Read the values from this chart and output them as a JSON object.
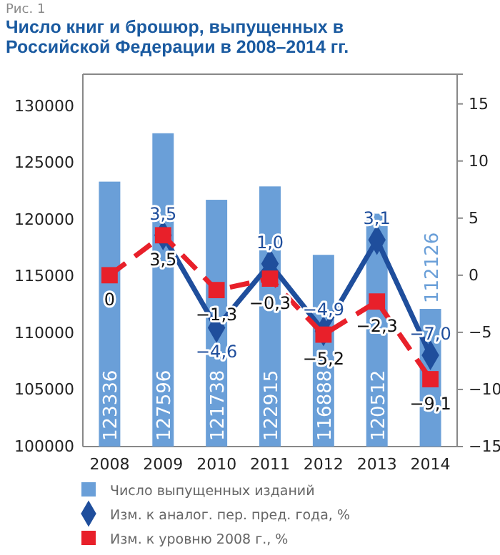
{
  "chart_data": {
    "type": "bar",
    "title": "Число книг и брошюр, выпущенных в Российской Федерации в 2008–2014 гг.",
    "annotations": [
      "Рис. 1"
    ],
    "categories": [
      "2008",
      "2009",
      "2010",
      "2011",
      "2012",
      "2013",
      "2014"
    ],
    "series": [
      {
        "name": "Число выпущенных изданий",
        "type": "bar",
        "color": "#6a9fd8",
        "values": [
          123336,
          127596,
          121738,
          122915,
          116888,
          120512,
          112126
        ],
        "value_labels": [
          "123336",
          "127596",
          "121738",
          "122915",
          "116888",
          "120512",
          "112126"
        ]
      },
      {
        "name": "Изм. к аналог. пер. пред. года, %",
        "type": "line",
        "axis": "y2",
        "color": "#1f4e9c",
        "marker": "diamond",
        "line_style": "solid",
        "values": [
          null,
          3.5,
          -4.6,
          1.0,
          -4.9,
          3.1,
          -7.0
        ],
        "value_labels": [
          null,
          "3,5",
          "−4,6",
          "1,0",
          "−4,9",
          "3,1",
          "−7,0"
        ]
      },
      {
        "name": "Изм. к уровню 2008 г., %",
        "type": "line",
        "axis": "y2",
        "color": "#e8202a",
        "marker": "square",
        "line_style": "dashed",
        "values": [
          0,
          3.5,
          -1.3,
          -0.3,
          -5.2,
          -2.3,
          -9.1
        ],
        "value_labels": [
          "0",
          "3,5",
          "−1,3",
          "−0,3",
          "−5,2",
          "−2,3",
          "−9,1"
        ]
      }
    ],
    "ylim": [
      100000,
      132800
    ],
    "yticks": [
      100000,
      105000,
      110000,
      115000,
      120000,
      125000,
      130000
    ],
    "y2lim": [
      -15,
      17.6
    ],
    "y2ticks": [
      {
        "value": -15,
        "label": "−15"
      },
      {
        "value": -10,
        "label": "−10"
      },
      {
        "value": -5,
        "label": "−5"
      },
      0,
      5,
      10,
      15
    ],
    "grid": false,
    "legend": "bottom"
  }
}
